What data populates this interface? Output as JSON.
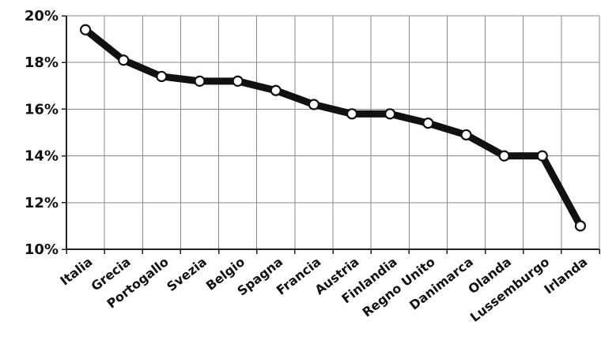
{
  "chart_data": {
    "type": "line",
    "title": "",
    "xlabel": "",
    "ylabel": "",
    "categories": [
      "Italia",
      "Grecia",
      "Portogallo",
      "Svezia",
      "Belgio",
      "Spagna",
      "Francia",
      "Austria",
      "Finlandia",
      "Regno Unito",
      "Danimarca",
      "Olanda",
      "Lussemburgo",
      "Irlanda"
    ],
    "series": [
      {
        "values": [
          19.4,
          18.1,
          17.4,
          17.2,
          17.2,
          16.8,
          16.2,
          15.8,
          15.8,
          15.4,
          14.9,
          14.0,
          14.0,
          11.0
        ]
      }
    ],
    "ylim": [
      10,
      20
    ],
    "y_ticks": [
      10,
      12,
      14,
      16,
      18,
      20
    ],
    "y_tick_labels": [
      "10%",
      "12%",
      "14%",
      "16%",
      "18%",
      "20%"
    ],
    "grid": true,
    "legend": "none",
    "colors": {
      "line": "#111111",
      "marker_fill": "#ffffff",
      "grid": "#8a8a8a",
      "axis": "#222222",
      "text": "#111111"
    }
  }
}
